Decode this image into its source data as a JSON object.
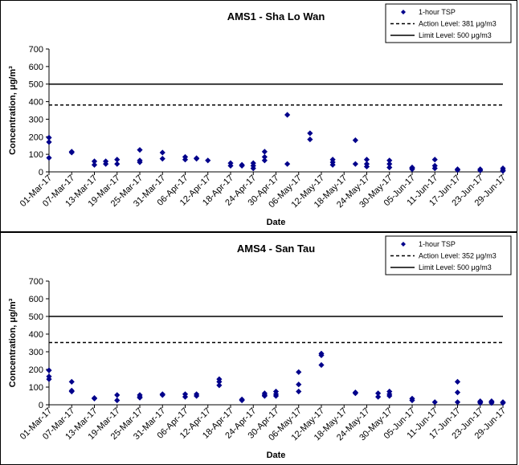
{
  "chart_data": [
    {
      "type": "scatter",
      "title": "AMS1 - Sha Lo Wan",
      "xlabel": "Date",
      "ylabel": "Concentration, μg/m³",
      "ylim": [
        0,
        700
      ],
      "yticks": [
        "0",
        "100",
        "200",
        "300",
        "400",
        "500",
        "600",
        "700"
      ],
      "xlim": [
        "01-Mar-17",
        "29-Jun-17"
      ],
      "xticks": [
        "01-Mar-17",
        "07-Mar-17",
        "13-Mar-17",
        "19-Mar-17",
        "25-Mar-17",
        "31-Mar-17",
        "06-Apr-17",
        "12-Apr-17",
        "18-Apr-17",
        "24-Apr-17",
        "30-Apr-17",
        "06-May-17",
        "12-May-17",
        "18-May-17",
        "24-May-17",
        "30-May-17",
        "05-Jun-17",
        "11-Jun-17",
        "17-Jun-17",
        "23-Jun-17",
        "29-Jun-17"
      ],
      "legend_position": "top-right",
      "series": [
        {
          "name": "1-hour TSP",
          "marker": "diamond",
          "color": "#00008B",
          "points": [
            [
              "01-Mar-17",
              195
            ],
            [
              "01-Mar-17",
              170
            ],
            [
              "01-Mar-17",
              80
            ],
            [
              "07-Mar-17",
              115
            ],
            [
              "07-Mar-17",
              110
            ],
            [
              "13-Mar-17",
              60
            ],
            [
              "13-Mar-17",
              40
            ],
            [
              "16-Mar-17",
              60
            ],
            [
              "16-Mar-17",
              45
            ],
            [
              "19-Mar-17",
              70
            ],
            [
              "19-Mar-17",
              45
            ],
            [
              "25-Mar-17",
              125
            ],
            [
              "25-Mar-17",
              65
            ],
            [
              "25-Mar-17",
              55
            ],
            [
              "31-Mar-17",
              110
            ],
            [
              "31-Mar-17",
              75
            ],
            [
              "06-Apr-17",
              85
            ],
            [
              "06-Apr-17",
              70
            ],
            [
              "09-Apr-17",
              78
            ],
            [
              "09-Apr-17",
              75
            ],
            [
              "12-Apr-17",
              65
            ],
            [
              "18-Apr-17",
              50
            ],
            [
              "18-Apr-17",
              35
            ],
            [
              "21-Apr-17",
              40
            ],
            [
              "21-Apr-17",
              35
            ],
            [
              "24-Apr-17",
              50
            ],
            [
              "24-Apr-17",
              35
            ],
            [
              "24-Apr-17",
              20
            ],
            [
              "27-Apr-17",
              115
            ],
            [
              "27-Apr-17",
              85
            ],
            [
              "27-Apr-17",
              65
            ],
            [
              "03-May-17",
              325
            ],
            [
              "03-May-17",
              45
            ],
            [
              "09-May-17",
              220
            ],
            [
              "09-May-17",
              185
            ],
            [
              "15-May-17",
              70
            ],
            [
              "15-May-17",
              55
            ],
            [
              "15-May-17",
              40
            ],
            [
              "21-May-17",
              180
            ],
            [
              "21-May-17",
              45
            ],
            [
              "24-May-17",
              70
            ],
            [
              "24-May-17",
              45
            ],
            [
              "24-May-17",
              30
            ],
            [
              "30-May-17",
              65
            ],
            [
              "30-May-17",
              45
            ],
            [
              "30-May-17",
              25
            ],
            [
              "05-Jun-17",
              25
            ],
            [
              "05-Jun-17",
              20
            ],
            [
              "05-Jun-17",
              15
            ],
            [
              "11-Jun-17",
              70
            ],
            [
              "11-Jun-17",
              35
            ],
            [
              "11-Jun-17",
              20
            ],
            [
              "17-Jun-17",
              15
            ],
            [
              "17-Jun-17",
              10
            ],
            [
              "23-Jun-17",
              15
            ],
            [
              "23-Jun-17",
              8
            ],
            [
              "29-Jun-17",
              20
            ],
            [
              "29-Jun-17",
              10
            ],
            [
              "29-Jun-17",
              5
            ]
          ]
        },
        {
          "name": "Action Level: 381 μg/m3",
          "style": "dashed",
          "value": 381
        },
        {
          "name": "Limit Level: 500 μg/m3",
          "style": "solid",
          "value": 500
        }
      ]
    },
    {
      "type": "scatter",
      "title": "AMS4 - San Tau",
      "xlabel": "Date",
      "ylabel": "Concentration, μg/m³",
      "ylim": [
        0,
        700
      ],
      "yticks": [
        "0",
        "100",
        "200",
        "300",
        "400",
        "500",
        "600",
        "700"
      ],
      "xlim": [
        "01-Mar-17",
        "29-Jun-17"
      ],
      "xticks": [
        "01-Mar-17",
        "07-Mar-17",
        "13-Mar-17",
        "19-Mar-17",
        "25-Mar-17",
        "31-Mar-17",
        "06-Apr-17",
        "12-Apr-17",
        "18-Apr-17",
        "24-Apr-17",
        "30-Apr-17",
        "06-May-17",
        "12-May-17",
        "18-May-17",
        "24-May-17",
        "30-May-17",
        "05-Jun-17",
        "11-Jun-17",
        "17-Jun-17",
        "23-Jun-17",
        "29-Jun-17"
      ],
      "legend_position": "top-right",
      "series": [
        {
          "name": "1-hour TSP",
          "marker": "diamond",
          "color": "#00008B",
          "points": [
            [
              "01-Mar-17",
              195
            ],
            [
              "01-Mar-17",
              160
            ],
            [
              "01-Mar-17",
              145
            ],
            [
              "07-Mar-17",
              130
            ],
            [
              "07-Mar-17",
              80
            ],
            [
              "07-Mar-17",
              75
            ],
            [
              "13-Mar-17",
              38
            ],
            [
              "13-Mar-17",
              35
            ],
            [
              "19-Mar-17",
              55
            ],
            [
              "19-Mar-17",
              25
            ],
            [
              "25-Mar-17",
              55
            ],
            [
              "25-Mar-17",
              45
            ],
            [
              "25-Mar-17",
              40
            ],
            [
              "31-Mar-17",
              60
            ],
            [
              "31-Mar-17",
              55
            ],
            [
              "06-Apr-17",
              60
            ],
            [
              "06-Apr-17",
              45
            ],
            [
              "09-Apr-17",
              60
            ],
            [
              "09-Apr-17",
              50
            ],
            [
              "15-Apr-17",
              145
            ],
            [
              "15-Apr-17",
              130
            ],
            [
              "15-Apr-17",
              110
            ],
            [
              "21-Apr-17",
              30
            ],
            [
              "21-Apr-17",
              25
            ],
            [
              "27-Apr-17",
              65
            ],
            [
              "27-Apr-17",
              55
            ],
            [
              "27-Apr-17",
              50
            ],
            [
              "30-Apr-17",
              75
            ],
            [
              "30-Apr-17",
              60
            ],
            [
              "30-Apr-17",
              50
            ],
            [
              "06-May-17",
              185
            ],
            [
              "06-May-17",
              115
            ],
            [
              "06-May-17",
              75
            ],
            [
              "12-May-17",
              290
            ],
            [
              "12-May-17",
              280
            ],
            [
              "12-May-17",
              225
            ],
            [
              "21-May-17",
              70
            ],
            [
              "21-May-17",
              65
            ],
            [
              "27-May-17",
              65
            ],
            [
              "27-May-17",
              45
            ],
            [
              "30-May-17",
              75
            ],
            [
              "30-May-17",
              60
            ],
            [
              "30-May-17",
              50
            ],
            [
              "05-Jun-17",
              35
            ],
            [
              "05-Jun-17",
              25
            ],
            [
              "11-Jun-17",
              15
            ],
            [
              "17-Jun-17",
              130
            ],
            [
              "17-Jun-17",
              70
            ],
            [
              "17-Jun-17",
              15
            ],
            [
              "23-Jun-17",
              20
            ],
            [
              "23-Jun-17",
              15
            ],
            [
              "23-Jun-17",
              10
            ],
            [
              "26-Jun-17",
              20
            ],
            [
              "26-Jun-17",
              15
            ],
            [
              "26-Jun-17",
              10
            ],
            [
              "29-Jun-17",
              15
            ],
            [
              "29-Jun-17",
              10
            ]
          ]
        },
        {
          "name": "Action Level: 352 μg/m3",
          "style": "dashed",
          "value": 352
        },
        {
          "name": "Limit Level: 500 μg/m3",
          "style": "solid",
          "value": 500
        }
      ]
    }
  ]
}
